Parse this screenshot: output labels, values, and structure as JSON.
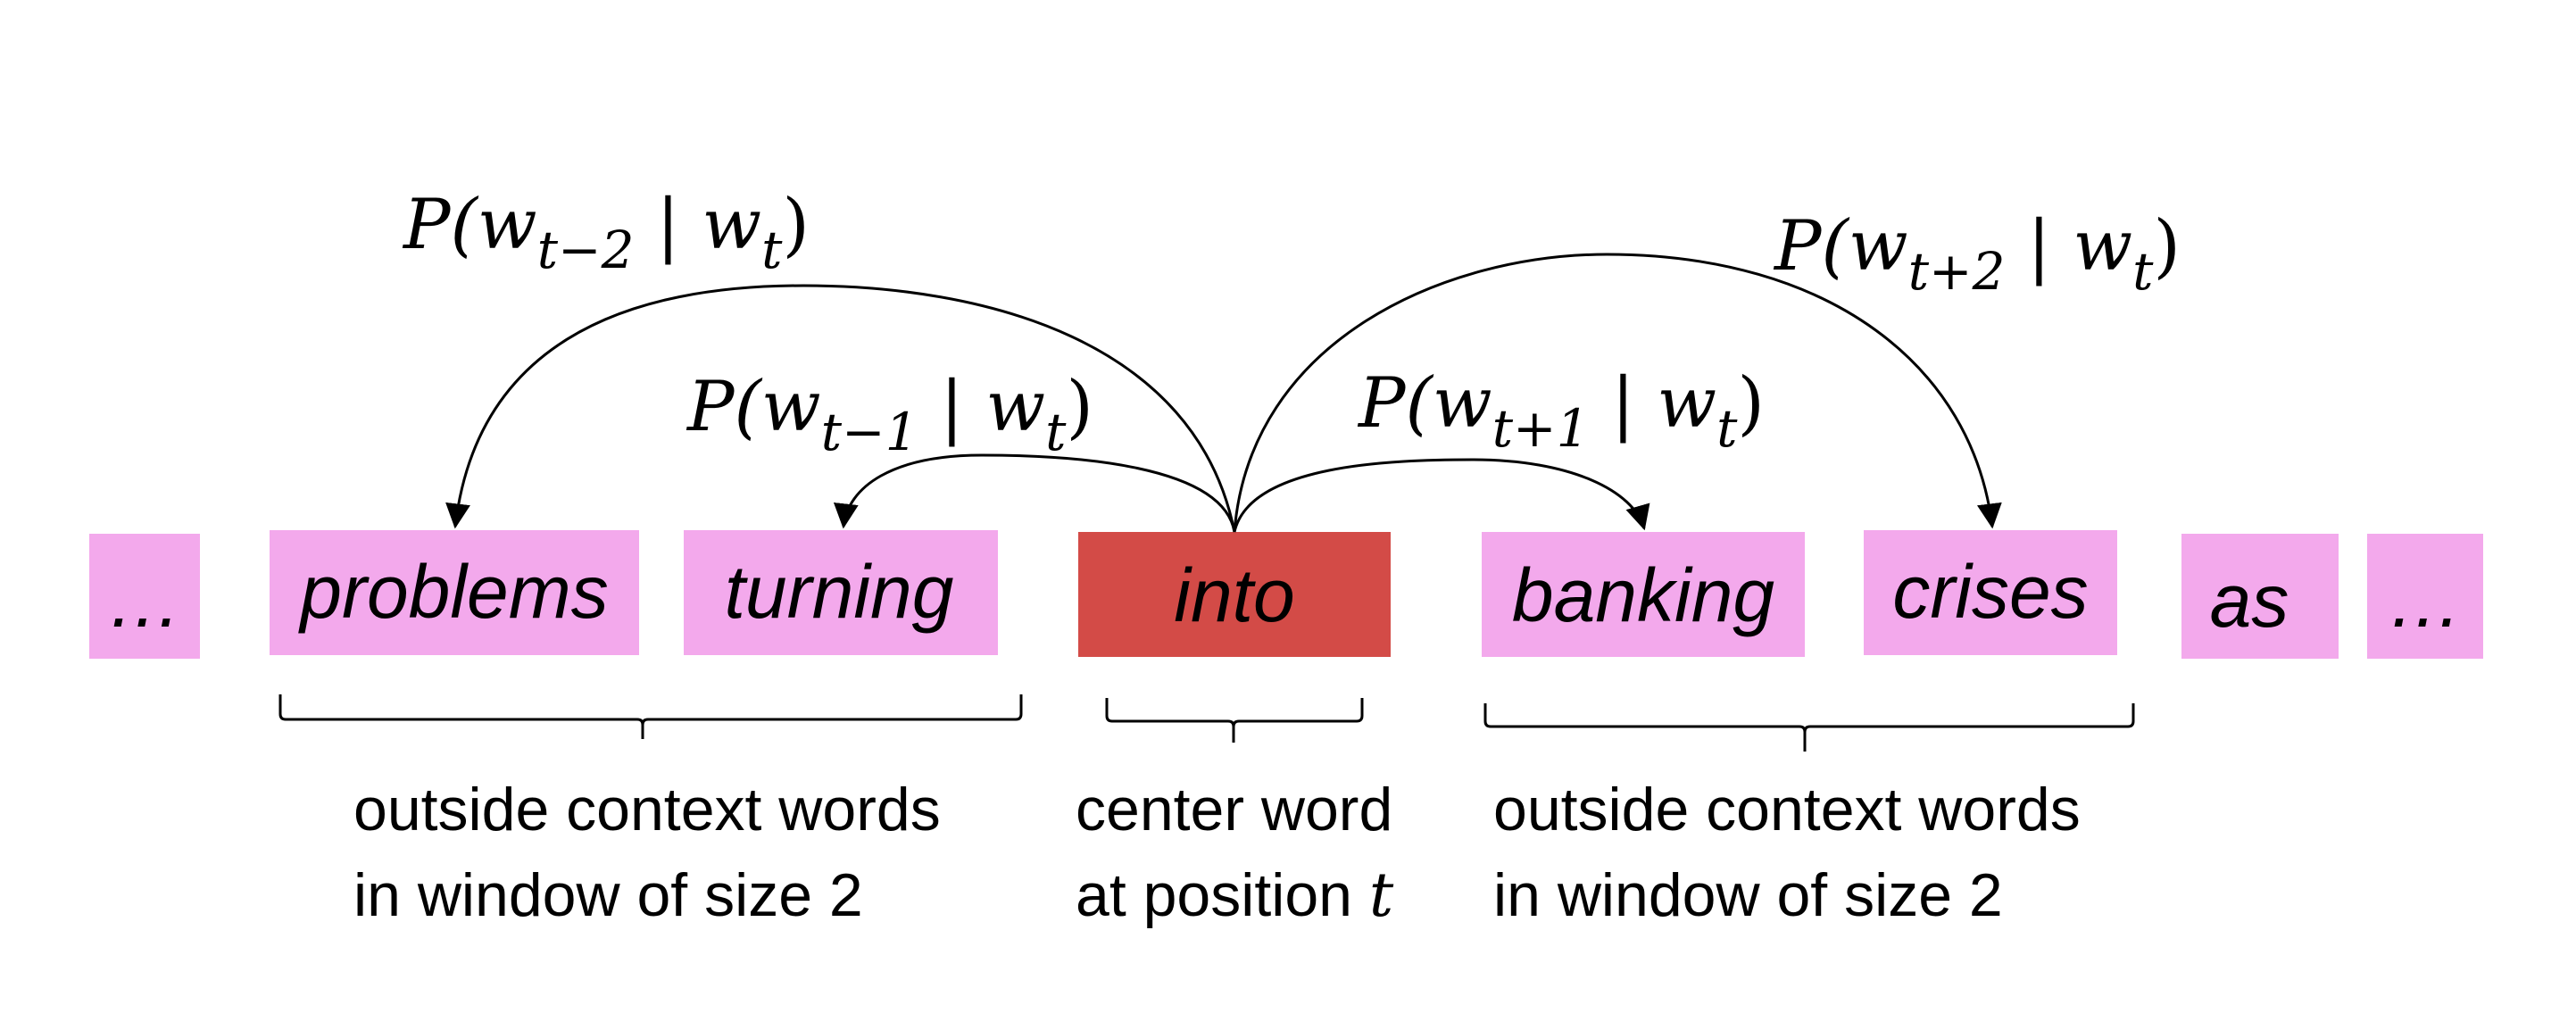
{
  "colors": {
    "context_word_fill": "#f3a9ec",
    "center_word_fill": "#d34b47",
    "line": "#000000",
    "text": "#000000"
  },
  "words": [
    {
      "text": "…",
      "role": "context"
    },
    {
      "text": "problems",
      "role": "context"
    },
    {
      "text": "turning",
      "role": "context"
    },
    {
      "text": "into",
      "role": "center"
    },
    {
      "text": "banking",
      "role": "context"
    },
    {
      "text": "crises",
      "role": "context"
    },
    {
      "text": "as",
      "role": "context"
    },
    {
      "text": "…",
      "role": "context"
    }
  ],
  "probabilities": [
    {
      "open": "P(w",
      "sub": "t−2",
      "mid": " | w",
      "sub2": "t",
      "close": ")"
    },
    {
      "open": "P(w",
      "sub": "t−1",
      "mid": " | w",
      "sub2": "t",
      "close": ")"
    },
    {
      "open": "P(w",
      "sub": "t+1",
      "mid": " | w",
      "sub2": "t",
      "close": ")"
    },
    {
      "open": "P(w",
      "sub": "t+2",
      "mid": " | w",
      "sub2": "t",
      "close": ")"
    }
  ],
  "captions": {
    "left": {
      "line1": "outside context words",
      "line2": "in window of size 2"
    },
    "center": {
      "line1": "center word",
      "line2_text": "at position ",
      "line2_math": "t"
    },
    "right": {
      "line1": "outside context words",
      "line2": "in window of size 2"
    }
  }
}
